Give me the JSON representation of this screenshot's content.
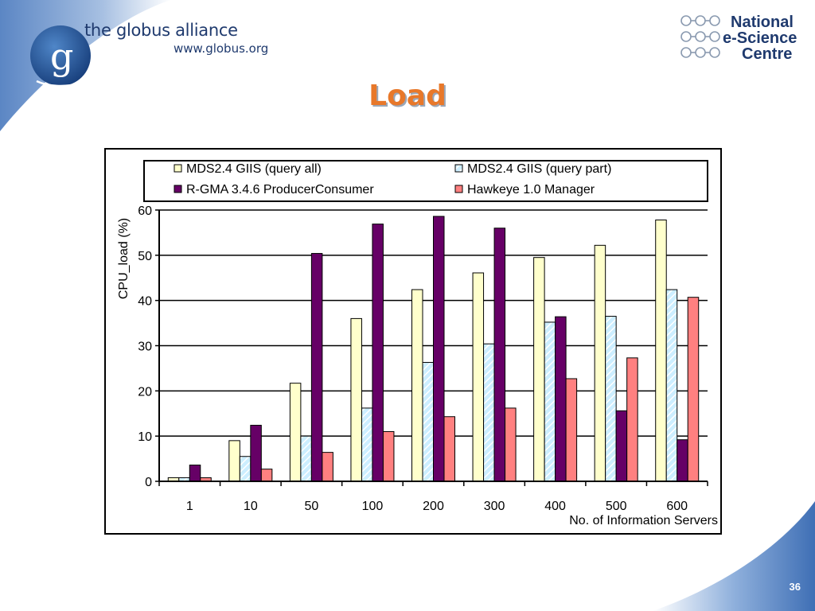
{
  "header": {
    "left_logo": {
      "name": "the globus alliance",
      "url": "www.globus.org"
    },
    "right_logo": {
      "lines": [
        "National",
        "e-Science",
        "Centre"
      ]
    }
  },
  "slide": {
    "title": "Load",
    "number": "36"
  },
  "chart_data": {
    "type": "bar",
    "categories": [
      "1",
      "10",
      "50",
      "100",
      "200",
      "300",
      "400",
      "500",
      "600"
    ],
    "series": [
      {
        "name": "MDS2.4 GIIS (query all)",
        "values": [
          0.8,
          9,
          21.7,
          36,
          42.4,
          46.1,
          49.5,
          52.2,
          57.8
        ],
        "color": "#ffffcc",
        "pattern": "solid"
      },
      {
        "name": "MDS2.4 GIIS (query part)",
        "values": [
          0.8,
          5.5,
          10,
          16.2,
          26.3,
          30.4,
          35.2,
          36.5,
          42.4
        ],
        "color": "#cceeff",
        "pattern": "diagonal-stripe"
      },
      {
        "name": "R-GMA 3.4.6 ProducerConsumer",
        "values": [
          3.6,
          12.4,
          50.4,
          56.9,
          58.6,
          56,
          36.4,
          15.6,
          9.2
        ],
        "color": "#660066",
        "pattern": "solid"
      },
      {
        "name": "Hawkeye 1.0 Manager",
        "values": [
          0.8,
          2.7,
          6.4,
          11,
          14.3,
          16.2,
          22.7,
          27.3,
          40.7
        ],
        "color": "#ff8080",
        "pattern": "solid"
      }
    ],
    "xlabel": "No. of Information Servers",
    "ylabel": "CPU_load (%)",
    "ylim": [
      0,
      60
    ],
    "yticks": [
      "0",
      "10",
      "20",
      "30",
      "40",
      "50",
      "60"
    ],
    "grid": true,
    "legend_position": "top"
  }
}
